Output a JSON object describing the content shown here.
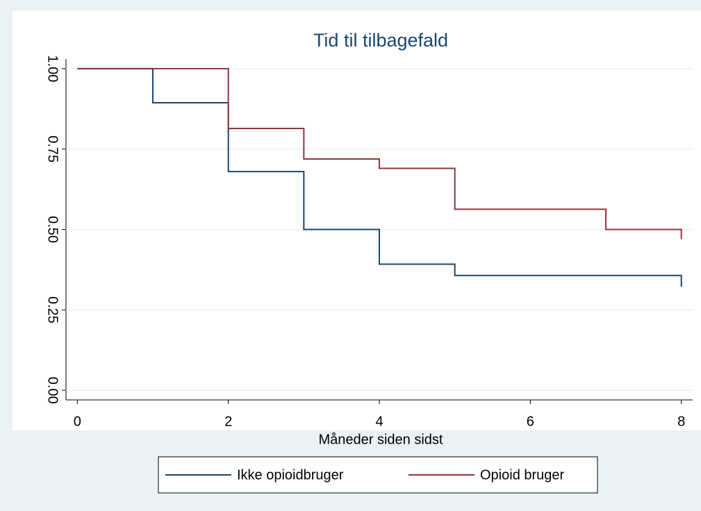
{
  "chart_data": {
    "type": "step",
    "title": "Tid til tilbagefald",
    "x_label": "Måneder siden sidst",
    "series": [
      {
        "name": "Ikke opioidbruger",
        "color": "#1a476f",
        "x": [
          0,
          1,
          2,
          3,
          4,
          5,
          8
        ],
        "values": [
          1,
          0.894,
          0.68,
          0.5,
          0.392,
          0.357,
          0.322
        ]
      },
      {
        "name": "Opioid bruger",
        "color": "#90353b",
        "x": [
          0,
          2,
          3,
          4,
          5,
          7,
          8
        ],
        "values": [
          1,
          0.814,
          0.719,
          0.69,
          0.563,
          0.5,
          0.47
        ]
      }
    ],
    "xlim": [
      -0.15,
      8.15
    ],
    "xticks": [
      0,
      2,
      4,
      6,
      8
    ],
    "ylim": [
      -0.03,
      1.03
    ],
    "yticks": [
      {
        "value": 0,
        "label": "0.00"
      },
      {
        "value": 0.25,
        "label": "0.25"
      },
      {
        "value": 0.5,
        "label": "0.50"
      },
      {
        "value": 0.75,
        "label": "0.75"
      },
      {
        "value": 1,
        "label": "1.00"
      }
    ],
    "grid": true,
    "legend": "bottom"
  }
}
